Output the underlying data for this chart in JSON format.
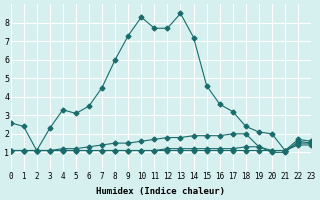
{
  "xlabel": "Humidex (Indice chaleur)",
  "xlim": [
    0,
    23
  ],
  "ylim": [
    0,
    9
  ],
  "xticks": [
    0,
    1,
    2,
    3,
    4,
    5,
    6,
    7,
    8,
    9,
    10,
    11,
    12,
    13,
    14,
    15,
    16,
    17,
    18,
    19,
    20,
    21,
    22,
    23
  ],
  "yticks": [
    1,
    2,
    3,
    4,
    5,
    6,
    7,
    8
  ],
  "bg_color": "#d6f0f0",
  "line_color": "#1a6b6b",
  "grid_color": "#ffffff",
  "series": [
    [
      2.6,
      2.4,
      1.1,
      2.3,
      3.3,
      3.1,
      3.5,
      4.5,
      6.0,
      7.3,
      8.3,
      7.7,
      7.7,
      8.5,
      7.2,
      4.6,
      3.6,
      3.2,
      2.4,
      2.1,
      2.0,
      1.1,
      1.7,
      1.6
    ],
    [
      1.1,
      1.1,
      1.1,
      1.1,
      1.2,
      1.2,
      1.3,
      1.4,
      1.5,
      1.5,
      1.6,
      1.7,
      1.8,
      1.8,
      1.9,
      1.9,
      1.9,
      2.0,
      2.0,
      1.3,
      1.0,
      1.0,
      1.6,
      1.5
    ],
    [
      1.1,
      1.1,
      1.1,
      1.1,
      1.1,
      1.1,
      1.1,
      1.1,
      1.1,
      1.1,
      1.1,
      1.1,
      1.2,
      1.2,
      1.2,
      1.2,
      1.2,
      1.2,
      1.3,
      1.3,
      1.1,
      1.1,
      1.5,
      1.5
    ],
    [
      1.1,
      1.1,
      1.1,
      1.1,
      1.1,
      1.1,
      1.1,
      1.1,
      1.1,
      1.1,
      1.1,
      1.1,
      1.1,
      1.1,
      1.1,
      1.1,
      1.1,
      1.1,
      1.1,
      1.1,
      1.1,
      1.1,
      1.4,
      1.4
    ]
  ]
}
